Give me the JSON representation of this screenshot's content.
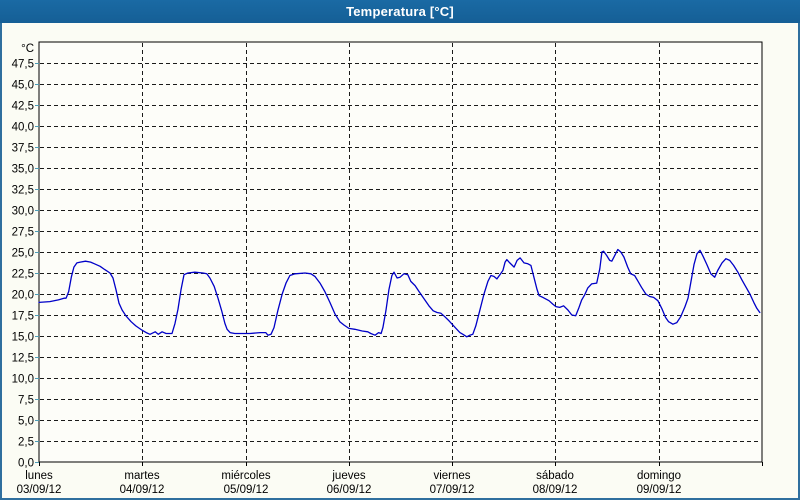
{
  "window": {
    "title": "Temperatura [°C]"
  },
  "colors": {
    "titlebar_bg": "#1a6aa4",
    "titlebar_bg_dark": "#155f96",
    "titlebar_text": "#ffffff",
    "window_border": "#2f6f9e",
    "page_bg": "#fbfcf4",
    "plot_bg": "#fdfdf9",
    "axis": "#000000",
    "grid": "#1a1a1a",
    "tick": "#4d9cb5",
    "line": "#0000c8",
    "label_text": "#000000"
  },
  "chart_data": {
    "type": "line",
    "title": "Temperatura [°C]",
    "xlabel": "",
    "ylabel": "°C",
    "y_unit_label": "°C",
    "ylim": [
      0,
      50
    ],
    "grid": "dashed",
    "legend": "none",
    "x_hours_total": 168,
    "y_ticks": [
      {
        "v": 0.0,
        "label": "0,0"
      },
      {
        "v": 2.5,
        "label": "2,5"
      },
      {
        "v": 5.0,
        "label": "5,0"
      },
      {
        "v": 7.5,
        "label": "7,5"
      },
      {
        "v": 10.0,
        "label": "10,0"
      },
      {
        "v": 12.5,
        "label": "12,5"
      },
      {
        "v": 15.0,
        "label": "15,0"
      },
      {
        "v": 17.5,
        "label": "17,5"
      },
      {
        "v": 20.0,
        "label": "20,0"
      },
      {
        "v": 22.5,
        "label": "22,5"
      },
      {
        "v": 25.0,
        "label": "25,0"
      },
      {
        "v": 27.5,
        "label": "27,5"
      },
      {
        "v": 30.0,
        "label": "30,0"
      },
      {
        "v": 32.5,
        "label": "32,5"
      },
      {
        "v": 35.0,
        "label": "35,0"
      },
      {
        "v": 37.5,
        "label": "37,5"
      },
      {
        "v": 40.0,
        "label": "40,0"
      },
      {
        "v": 42.5,
        "label": "42,5"
      },
      {
        "v": 45.0,
        "label": "45,0"
      },
      {
        "v": 47.5,
        "label": "47,5"
      }
    ],
    "x_days": [
      {
        "name": "lunes",
        "date": "03/09/12"
      },
      {
        "name": "martes",
        "date": "04/09/12"
      },
      {
        "name": "miércoles",
        "date": "05/09/12"
      },
      {
        "name": "jueves",
        "date": "06/09/12"
      },
      {
        "name": "viernes",
        "date": "07/09/12"
      },
      {
        "name": "sábado",
        "date": "08/09/12"
      },
      {
        "name": "domingo",
        "date": "09/09/12"
      }
    ],
    "series": [
      {
        "name": "Temperatura",
        "color": "#0000c8",
        "points_hours_temp": [
          [
            0,
            19.0
          ],
          [
            2.5,
            19.1
          ],
          [
            4.5,
            19.3
          ],
          [
            5.8,
            19.5
          ],
          [
            6.3,
            19.5
          ],
          [
            6.9,
            20.3
          ],
          [
            7.5,
            22.0
          ],
          [
            8.1,
            23.2
          ],
          [
            8.8,
            23.7
          ],
          [
            9.6,
            23.8
          ],
          [
            10.8,
            23.9
          ],
          [
            12.0,
            23.8
          ],
          [
            12.9,
            23.6
          ],
          [
            14.2,
            23.3
          ],
          [
            15.3,
            22.9
          ],
          [
            16.5,
            22.5
          ],
          [
            17.2,
            21.9
          ],
          [
            17.9,
            20.5
          ],
          [
            18.6,
            18.9
          ],
          [
            19.3,
            18.1
          ],
          [
            20.2,
            17.4
          ],
          [
            21.4,
            16.7
          ],
          [
            22.5,
            16.2
          ],
          [
            23.9,
            15.7
          ],
          [
            24.9,
            15.4
          ],
          [
            25.8,
            15.2
          ],
          [
            27.0,
            15.5
          ],
          [
            27.7,
            15.2
          ],
          [
            28.6,
            15.5
          ],
          [
            29.5,
            15.3
          ],
          [
            30.9,
            15.3
          ],
          [
            31.6,
            16.5
          ],
          [
            32.3,
            18.2
          ],
          [
            33.0,
            20.5
          ],
          [
            33.7,
            22.3
          ],
          [
            34.6,
            22.5
          ],
          [
            36.2,
            22.6
          ],
          [
            38.1,
            22.5
          ],
          [
            39.0,
            22.4
          ],
          [
            39.7,
            21.9
          ],
          [
            40.7,
            20.9
          ],
          [
            41.6,
            19.5
          ],
          [
            42.5,
            17.9
          ],
          [
            43.2,
            16.5
          ],
          [
            43.7,
            15.8
          ],
          [
            44.4,
            15.4
          ],
          [
            45.5,
            15.3
          ],
          [
            49.0,
            15.3
          ],
          [
            51.4,
            15.4
          ],
          [
            52.7,
            15.4
          ],
          [
            53.2,
            15.1
          ],
          [
            53.9,
            15.2
          ],
          [
            54.6,
            16.0
          ],
          [
            55.5,
            18.0
          ],
          [
            56.5,
            20.0
          ],
          [
            57.4,
            21.3
          ],
          [
            58.3,
            22.2
          ],
          [
            59.5,
            22.4
          ],
          [
            61.8,
            22.5
          ],
          [
            63.2,
            22.4
          ],
          [
            64.1,
            22.1
          ],
          [
            65.3,
            21.3
          ],
          [
            66.4,
            20.3
          ],
          [
            67.6,
            19.0
          ],
          [
            68.8,
            17.6
          ],
          [
            69.9,
            16.7
          ],
          [
            70.9,
            16.3
          ],
          [
            72.0,
            15.9
          ],
          [
            73.4,
            15.8
          ],
          [
            75.1,
            15.6
          ],
          [
            76.4,
            15.5
          ],
          [
            77.1,
            15.3
          ],
          [
            78.1,
            15.1
          ],
          [
            78.9,
            15.4
          ],
          [
            79.5,
            15.3
          ],
          [
            79.9,
            16.0
          ],
          [
            80.6,
            18.0
          ],
          [
            81.3,
            20.5
          ],
          [
            82.0,
            22.2
          ],
          [
            82.5,
            22.6
          ],
          [
            83.2,
            21.9
          ],
          [
            83.9,
            22.0
          ],
          [
            84.8,
            22.4
          ],
          [
            85.7,
            22.3
          ],
          [
            86.4,
            21.5
          ],
          [
            87.4,
            21.0
          ],
          [
            88.3,
            20.3
          ],
          [
            89.5,
            19.4
          ],
          [
            90.6,
            18.6
          ],
          [
            91.6,
            18.0
          ],
          [
            92.5,
            17.8
          ],
          [
            93.4,
            17.7
          ],
          [
            94.3,
            17.3
          ],
          [
            95.3,
            16.8
          ],
          [
            96.0,
            16.4
          ],
          [
            96.9,
            15.9
          ],
          [
            97.8,
            15.4
          ],
          [
            98.5,
            15.2
          ],
          [
            99.4,
            14.9
          ],
          [
            100.1,
            15.1
          ],
          [
            100.8,
            15.2
          ],
          [
            101.5,
            16.2
          ],
          [
            102.4,
            18.0
          ],
          [
            103.4,
            20.0
          ],
          [
            104.3,
            21.5
          ],
          [
            105.0,
            22.2
          ],
          [
            105.7,
            22.1
          ],
          [
            106.4,
            21.8
          ],
          [
            107.1,
            22.3
          ],
          [
            107.8,
            22.8
          ],
          [
            108.3,
            23.8
          ],
          [
            108.7,
            24.1
          ],
          [
            109.4,
            23.7
          ],
          [
            110.4,
            23.2
          ],
          [
            111.1,
            24.0
          ],
          [
            111.8,
            24.3
          ],
          [
            112.7,
            23.7
          ],
          [
            113.6,
            23.6
          ],
          [
            114.3,
            23.4
          ],
          [
            115.0,
            22.0
          ],
          [
            115.7,
            20.6
          ],
          [
            116.2,
            19.8
          ],
          [
            117.1,
            19.6
          ],
          [
            118.5,
            19.2
          ],
          [
            119.4,
            18.8
          ],
          [
            120.1,
            18.5
          ],
          [
            121.0,
            18.4
          ],
          [
            121.9,
            18.6
          ],
          [
            122.9,
            18.1
          ],
          [
            123.8,
            17.5
          ],
          [
            124.7,
            17.4
          ],
          [
            125.4,
            18.3
          ],
          [
            126.1,
            19.3
          ],
          [
            126.8,
            19.9
          ],
          [
            127.5,
            20.7
          ],
          [
            128.4,
            21.2
          ],
          [
            129.6,
            21.3
          ],
          [
            130.3,
            23.0
          ],
          [
            130.8,
            25.0
          ],
          [
            131.2,
            25.1
          ],
          [
            131.9,
            24.6
          ],
          [
            132.6,
            24.0
          ],
          [
            133.1,
            23.9
          ],
          [
            133.8,
            24.6
          ],
          [
            134.5,
            25.3
          ],
          [
            135.2,
            25.0
          ],
          [
            135.9,
            24.4
          ],
          [
            136.8,
            23.2
          ],
          [
            137.5,
            22.4
          ],
          [
            138.4,
            22.2
          ],
          [
            139.1,
            21.6
          ],
          [
            140.0,
            20.8
          ],
          [
            141.0,
            20.0
          ],
          [
            141.9,
            19.7
          ],
          [
            142.8,
            19.6
          ],
          [
            143.8,
            19.2
          ],
          [
            144.7,
            18.3
          ],
          [
            145.6,
            17.2
          ],
          [
            146.3,
            16.7
          ],
          [
            147.3,
            16.4
          ],
          [
            148.2,
            16.6
          ],
          [
            149.1,
            17.3
          ],
          [
            150.1,
            18.5
          ],
          [
            150.8,
            19.5
          ],
          [
            151.5,
            21.5
          ],
          [
            152.2,
            23.5
          ],
          [
            152.9,
            24.8
          ],
          [
            153.6,
            25.2
          ],
          [
            154.3,
            24.5
          ],
          [
            155.2,
            23.5
          ],
          [
            156.1,
            22.4
          ],
          [
            157.0,
            22.0
          ],
          [
            157.7,
            22.8
          ],
          [
            158.7,
            23.7
          ],
          [
            159.6,
            24.2
          ],
          [
            160.5,
            24.0
          ],
          [
            161.4,
            23.4
          ],
          [
            162.4,
            22.6
          ],
          [
            163.3,
            21.7
          ],
          [
            164.2,
            20.9
          ],
          [
            165.2,
            20.0
          ],
          [
            166.1,
            19.0
          ],
          [
            166.8,
            18.3
          ],
          [
            167.5,
            17.8
          ]
        ]
      }
    ]
  }
}
